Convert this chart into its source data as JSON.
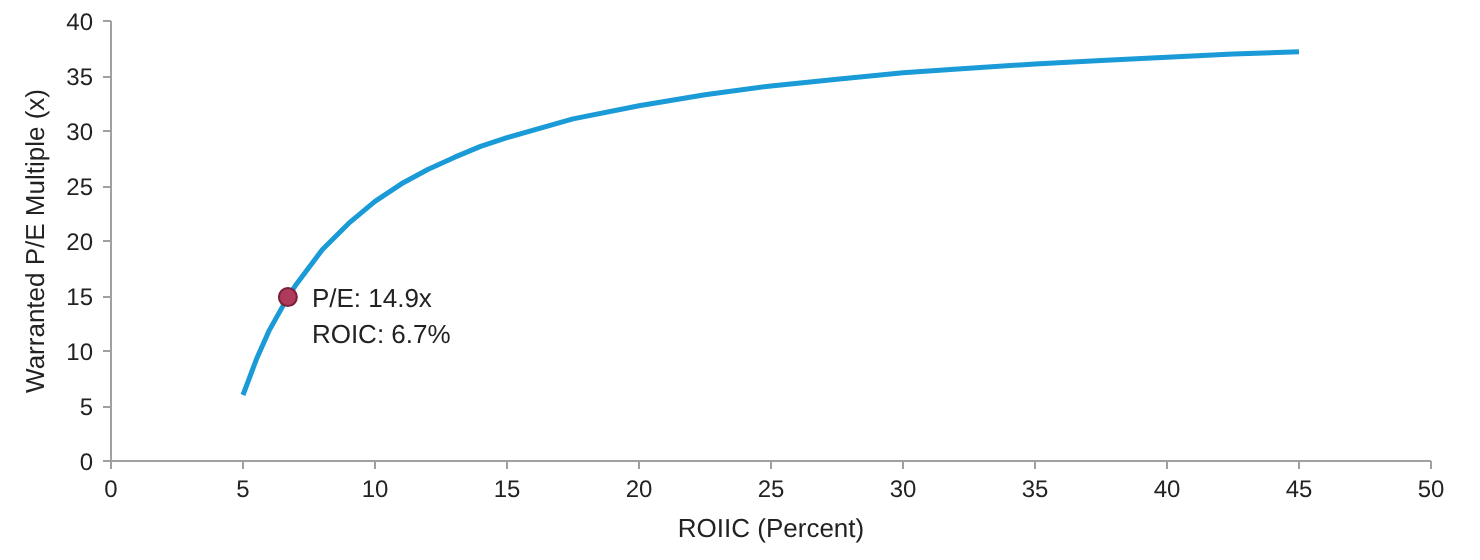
{
  "chart_data": {
    "type": "line",
    "xlabel": "ROIIC (Percent)",
    "ylabel": "Warranted P/E Multiple (x)",
    "xlim": [
      0,
      50
    ],
    "xticks": [
      0,
      5,
      10,
      15,
      20,
      25,
      30,
      35,
      40,
      45,
      50
    ],
    "ylim": [
      0,
      40
    ],
    "yticks": [
      0,
      5,
      10,
      15,
      20,
      25,
      30,
      35,
      40
    ],
    "grid": false,
    "series": [
      {
        "color": "#1a9bd7",
        "x": [
          5,
          5.5,
          6,
          6.7,
          7,
          8,
          9,
          10,
          11,
          12,
          13,
          14,
          15,
          17.5,
          20,
          22.5,
          25,
          27.5,
          30,
          32.5,
          35,
          37.5,
          40,
          42.5,
          45
        ],
        "values": [
          6.0,
          9.2,
          11.9,
          14.9,
          16.0,
          19.2,
          21.6,
          23.6,
          25.2,
          26.5,
          27.6,
          28.6,
          29.4,
          31.1,
          32.3,
          33.3,
          34.1,
          34.7,
          35.3,
          35.7,
          36.1,
          36.4,
          36.7,
          37.0,
          37.2
        ]
      },
      {
        "type": "scatter",
        "color": "#b03a5b",
        "marker": "circle",
        "x": [
          6.7
        ],
        "values": [
          14.9
        ]
      }
    ],
    "annotations": [
      {
        "text": "P/E:     14.9x\nROIC: 6.7%",
        "x": 6.7,
        "y": 14.9
      }
    ]
  }
}
